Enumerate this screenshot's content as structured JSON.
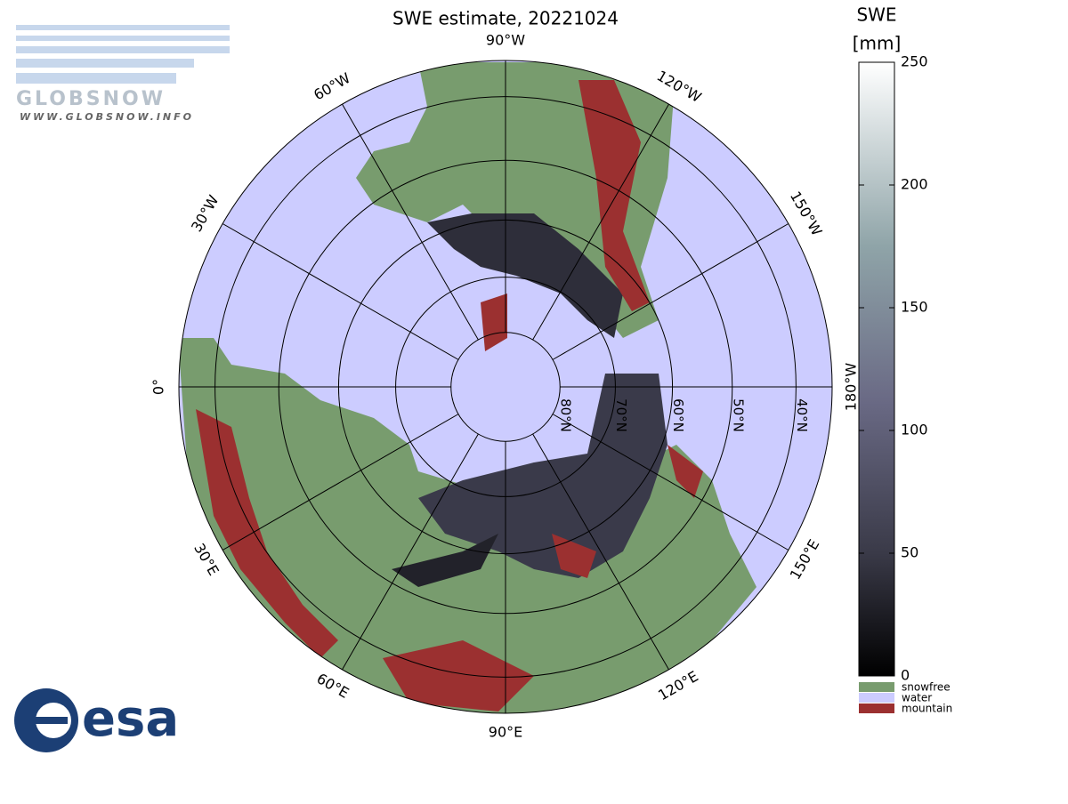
{
  "title": "SWE estimate, 20221024",
  "colorbar": {
    "label": "SWE",
    "unit": "[mm]",
    "lim": [
      0,
      250
    ],
    "ticks": [
      0,
      50,
      100,
      150,
      200,
      250
    ]
  },
  "legend": [
    {
      "name": "snowfree",
      "color": "#789c6e"
    },
    {
      "name": "water",
      "color": "#ccccff"
    },
    {
      "name": "mountain",
      "color": "#9b3030"
    }
  ],
  "longitude_labels": [
    {
      "value": -90,
      "label": "90°W"
    },
    {
      "value": -120,
      "label": "120°W"
    },
    {
      "value": -150,
      "label": "150°W"
    },
    {
      "value": 180,
      "label": "180°W"
    },
    {
      "value": 150,
      "label": "150°E"
    },
    {
      "value": 120,
      "label": "120°E"
    },
    {
      "value": 90,
      "label": "90°E"
    },
    {
      "value": 60,
      "label": "60°E"
    },
    {
      "value": 30,
      "label": "30°E"
    },
    {
      "value": 0,
      "label": "0°"
    },
    {
      "value": -30,
      "label": "30°W"
    },
    {
      "value": -60,
      "label": "60°W"
    }
  ],
  "latitude_labels": [
    {
      "value": 80,
      "label": "80°N"
    },
    {
      "value": 70,
      "label": "70°N"
    },
    {
      "value": 60,
      "label": "60°N"
    },
    {
      "value": 50,
      "label": "50°N"
    },
    {
      "value": 40,
      "label": "40°N"
    }
  ],
  "logos": {
    "globsnow": "GLOBSNOW",
    "url": "WWW.GLOBSNOW.INFO",
    "esa": "esa"
  }
}
